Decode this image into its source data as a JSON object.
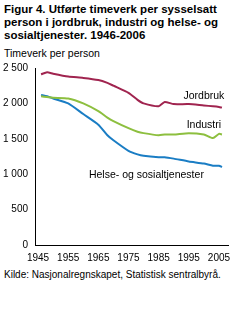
{
  "chart_data": {
    "type": "line",
    "title": "Figur 4. Utførte timeverk per sysselsatt person i jordbruk, industri og helse- og sosialtjenester. 1946-2006",
    "ylabel": "Timeverk per person",
    "source": "Kilde: Nasjonalregnskapet, Statistisk sentralbyrå.",
    "x": [
      1946,
      1948,
      1950,
      1955,
      1960,
      1965,
      1968,
      1970,
      1975,
      1978,
      1980,
      1985,
      1987,
      1990,
      1995,
      2000,
      2003,
      2005,
      2006
    ],
    "series": [
      {
        "name": "Jordbruk",
        "color": "#a0244f",
        "values": [
          2410,
          2440,
          2420,
          2380,
          2360,
          2330,
          2290,
          2250,
          2150,
          2050,
          2000,
          1960,
          2020,
          1990,
          1990,
          1970,
          1960,
          1950,
          1940
        ]
      },
      {
        "name": "Industri",
        "color": "#8dbf3f",
        "values": [
          2100,
          2090,
          2080,
          2070,
          2000,
          1890,
          1800,
          1750,
          1650,
          1600,
          1580,
          1550,
          1560,
          1560,
          1580,
          1560,
          1510,
          1570,
          1560
        ]
      },
      {
        "name": "Helse- og sosialtjenester",
        "color": "#1a7dc4",
        "values": [
          2120,
          2100,
          2070,
          2000,
          1850,
          1700,
          1550,
          1480,
          1330,
          1280,
          1260,
          1240,
          1240,
          1220,
          1180,
          1150,
          1120,
          1120,
          1100
        ]
      }
    ],
    "xlim": [
      1944,
      2008
    ],
    "xticks": [
      1945,
      1955,
      1965,
      1975,
      1985,
      1995,
      2005
    ],
    "ylim": [
      0,
      2500
    ],
    "yticks": [
      0,
      500,
      {
        "value": 1000,
        "label": "1 000"
      },
      {
        "value": 1500,
        "label": "1 500"
      },
      {
        "value": 2000,
        "label": "2 000"
      },
      {
        "value": 2500,
        "label": "2 500"
      }
    ],
    "grid": false
  }
}
